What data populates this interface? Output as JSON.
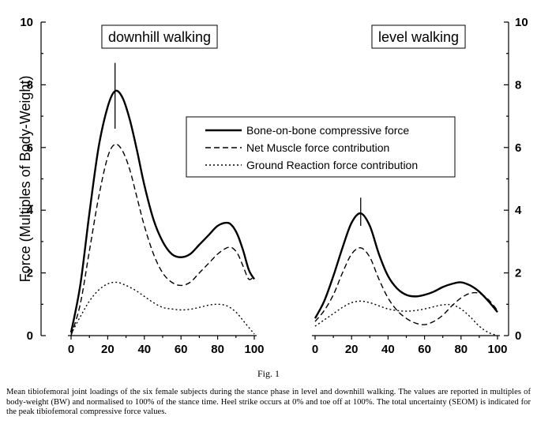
{
  "figure_label": "Fig. 1",
  "caption": "Mean tibiofemoral joint loadings of the six female subjects during the stance phase in level and downhill walking. The values are reported in multiples of body-weight (BW) and normalised to 100% of the stance time. Heel strike occurs at 0% and toe off at 100%. The total uncertainty (SEOM) is indicated for the peak tibiofemoral compressive force values.",
  "colors": {
    "line": "#000000",
    "background": "#ffffff"
  },
  "chart_data": [
    {
      "type": "line",
      "title": "downhill walking",
      "ylabel": "Force (Multiples of Body-Weight)",
      "xlabel": "",
      "xlim": [
        0,
        100
      ],
      "ylim": [
        0,
        10
      ],
      "x_ticks": [
        "0",
        "20",
        "40",
        "60",
        "80",
        "100"
      ],
      "y_ticks": [
        "0",
        "2",
        "4",
        "6",
        "8",
        "10"
      ],
      "y_axis_side": "left",
      "grid": false,
      "legend_position": "upper-center",
      "series": [
        {
          "name": "Bone-on-bone compressive force",
          "style": "solid",
          "x": [
            0,
            5,
            10,
            15,
            20,
            24,
            28,
            32,
            36,
            40,
            45,
            50,
            55,
            60,
            65,
            70,
            75,
            80,
            85,
            88,
            91,
            94,
            97,
            100
          ],
          "y": [
            0.1,
            1.6,
            3.9,
            6.0,
            7.3,
            7.8,
            7.6,
            6.9,
            5.9,
            4.8,
            3.7,
            3.0,
            2.6,
            2.5,
            2.6,
            2.9,
            3.2,
            3.5,
            3.6,
            3.5,
            3.2,
            2.7,
            2.1,
            1.8
          ]
        },
        {
          "name": "Net Muscle force contribution",
          "style": "dashed",
          "x": [
            0,
            5,
            10,
            15,
            20,
            24,
            28,
            32,
            36,
            40,
            45,
            50,
            55,
            60,
            65,
            70,
            75,
            80,
            85,
            88,
            91,
            94,
            97,
            100
          ],
          "y": [
            0.0,
            1.0,
            2.7,
            4.4,
            5.7,
            6.1,
            5.9,
            5.3,
            4.4,
            3.5,
            2.6,
            2.0,
            1.7,
            1.6,
            1.7,
            2.0,
            2.3,
            2.6,
            2.8,
            2.8,
            2.6,
            2.2,
            1.8,
            1.9
          ]
        },
        {
          "name": "Ground Reaction force contribution",
          "style": "dotted",
          "x": [
            0,
            5,
            10,
            15,
            20,
            25,
            30,
            35,
            40,
            45,
            50,
            55,
            60,
            65,
            70,
            75,
            80,
            85,
            90,
            95,
            100
          ],
          "y": [
            0.05,
            0.6,
            1.1,
            1.45,
            1.65,
            1.7,
            1.6,
            1.45,
            1.25,
            1.05,
            0.9,
            0.85,
            0.82,
            0.84,
            0.9,
            0.97,
            1.0,
            0.95,
            0.75,
            0.4,
            0.05
          ]
        }
      ],
      "error_bars": [
        {
          "x": 24,
          "low": 6.6,
          "high": 8.7
        }
      ]
    },
    {
      "type": "line",
      "title": "level walking",
      "ylabel": "",
      "xlabel": "",
      "xlim": [
        0,
        100
      ],
      "ylim": [
        0,
        10
      ],
      "x_ticks": [
        "0",
        "20",
        "40",
        "60",
        "80",
        "100"
      ],
      "y_ticks": [
        "0",
        "2",
        "4",
        "6",
        "8",
        "10"
      ],
      "y_axis_side": "right",
      "grid": false,
      "series": [
        {
          "name": "Bone-on-bone compressive force",
          "style": "solid",
          "x": [
            0,
            5,
            10,
            15,
            20,
            25,
            30,
            35,
            40,
            45,
            50,
            55,
            60,
            65,
            70,
            75,
            80,
            85,
            90,
            95,
            100
          ],
          "y": [
            0.55,
            1.1,
            1.9,
            2.8,
            3.6,
            3.9,
            3.5,
            2.6,
            1.9,
            1.5,
            1.3,
            1.25,
            1.3,
            1.4,
            1.55,
            1.65,
            1.7,
            1.6,
            1.4,
            1.1,
            0.75
          ]
        },
        {
          "name": "Net Muscle force contribution",
          "style": "dashed",
          "x": [
            0,
            5,
            10,
            15,
            20,
            25,
            30,
            35,
            40,
            45,
            50,
            55,
            60,
            65,
            70,
            75,
            80,
            85,
            90,
            95,
            100
          ],
          "y": [
            0.45,
            0.8,
            1.3,
            2.0,
            2.6,
            2.8,
            2.5,
            1.8,
            1.2,
            0.8,
            0.55,
            0.4,
            0.35,
            0.45,
            0.65,
            0.95,
            1.2,
            1.35,
            1.35,
            1.15,
            0.8
          ]
        },
        {
          "name": "Ground Reaction force contribution",
          "style": "dotted",
          "x": [
            0,
            5,
            10,
            15,
            20,
            25,
            30,
            35,
            40,
            45,
            50,
            55,
            60,
            65,
            70,
            75,
            80,
            85,
            90,
            95,
            100
          ],
          "y": [
            0.3,
            0.5,
            0.7,
            0.9,
            1.05,
            1.1,
            1.05,
            0.95,
            0.85,
            0.8,
            0.78,
            0.8,
            0.85,
            0.92,
            0.98,
            0.98,
            0.85,
            0.6,
            0.3,
            0.1,
            0.0
          ]
        }
      ],
      "error_bars": [
        {
          "x": 25,
          "low": 3.5,
          "high": 4.4
        }
      ]
    }
  ]
}
